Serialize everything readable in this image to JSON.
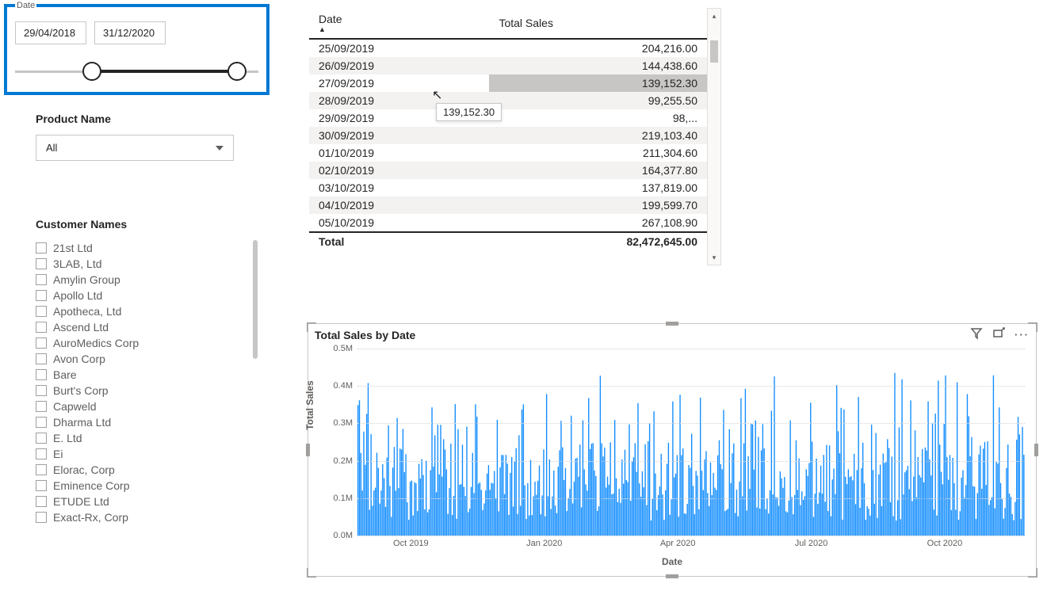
{
  "date_slicer": {
    "label": "Date",
    "start": "29/04/2018",
    "end": "31/12/2020"
  },
  "product_filter": {
    "heading": "Product Name",
    "selected": "All"
  },
  "customer_filter": {
    "heading": "Customer Names",
    "items": [
      "21st Ltd",
      "3LAB, Ltd",
      "Amylin Group",
      "Apollo Ltd",
      "Apotheca, Ltd",
      "Ascend Ltd",
      "AuroMedics Corp",
      "Avon Corp",
      "Bare",
      "Burt's Corp",
      "Capweld",
      "Dharma Ltd",
      "E. Ltd",
      "Ei",
      "Elorac, Corp",
      "Eminence Corp",
      "ETUDE Ltd",
      "Exact-Rx, Corp"
    ]
  },
  "table": {
    "columns": [
      "Date",
      "Total Sales"
    ],
    "rows": [
      [
        "25/09/2019",
        "204,216.00"
      ],
      [
        "26/09/2019",
        "144,438.60"
      ],
      [
        "27/09/2019",
        "139,152.30"
      ],
      [
        "28/09/2019",
        "99,255.50"
      ],
      [
        "29/09/2019",
        "98,..."
      ],
      [
        "30/09/2019",
        "219,103.40"
      ],
      [
        "01/10/2019",
        "211,304.60"
      ],
      [
        "02/10/2019",
        "164,377.80"
      ],
      [
        "03/10/2019",
        "137,819.00"
      ],
      [
        "04/10/2019",
        "199,599.70"
      ],
      [
        "05/10/2019",
        "267,108.90"
      ]
    ],
    "total_label": "Total",
    "total_value": "82,472,645.00",
    "tooltip_value": "139,152.30",
    "hovered_row_index": 2
  },
  "chart": {
    "title": "Total Sales by Date",
    "y_label": "Total Sales",
    "x_label": "Date",
    "y_max": 500000,
    "y_ticks": [
      {
        "v": 0,
        "label": "0.0M"
      },
      {
        "v": 100000,
        "label": "0.1M"
      },
      {
        "v": 200000,
        "label": "0.2M"
      },
      {
        "v": 300000,
        "label": "0.3M"
      },
      {
        "v": 400000,
        "label": "0.4M"
      },
      {
        "v": 500000,
        "label": "0.5M"
      }
    ],
    "x_ticks": [
      {
        "pos": 0.08,
        "label": "Oct 2019"
      },
      {
        "pos": 0.28,
        "label": "Jan 2020"
      },
      {
        "pos": 0.48,
        "label": "Apr 2020"
      },
      {
        "pos": 0.68,
        "label": "Jul 2020"
      },
      {
        "pos": 0.88,
        "label": "Oct 2020"
      }
    ],
    "bar_color": "#118dff",
    "grid_color": "#d2d0ce",
    "background": "#ffffff",
    "n_bars": 460,
    "value_min": 40000,
    "value_max": 440000
  }
}
